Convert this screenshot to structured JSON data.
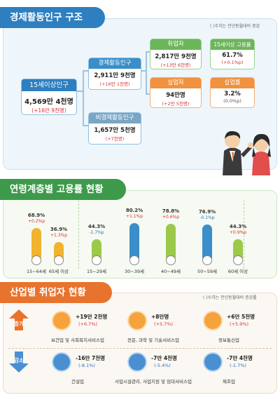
{
  "section1": {
    "title": "경제활동인구 구조",
    "note": "( )수치는 전년동월대비 증감",
    "pop15": {
      "label": "15세이상인구",
      "value": "4,569만 4천명",
      "change": "(+16만 9천명)"
    },
    "econ": {
      "label": "경제활동인구",
      "value": "2,911만 9천명",
      "change": "(+16만 1천명)"
    },
    "nonecon": {
      "label": "비경제활동인구",
      "value": "1,657만 5천명",
      "change": "(+7천명)"
    },
    "employed": {
      "label": "취업자",
      "value": "2,817만 9천명",
      "change": "(+13만 6천명)"
    },
    "unemployed": {
      "label": "실업자",
      "value": "94만명",
      "change": "(+2만 5천명)"
    },
    "emp_rate": {
      "label": "15세이상 고용률",
      "value": "61.7%",
      "change": "(+0.1%p)"
    },
    "unemp_rate": {
      "label": "실업률",
      "value": "3.2%",
      "change": "(0.0%p)"
    }
  },
  "section2": {
    "title": "연령계층별 고용률 현황",
    "bars": [
      {
        "label": "15~64세",
        "value": 68.9,
        "pct": "68.9%",
        "change": "+0.2%p",
        "dir": "up",
        "color": "#f2b32e"
      },
      {
        "label": "65세 이상",
        "value": 36.9,
        "pct": "36.9%",
        "change": "+1.3%p",
        "dir": "up",
        "color": "#f2b32e"
      },
      {
        "label": "15~29세",
        "value": 44.3,
        "pct": "44.3%",
        "change": "-1.7%p",
        "dir": "down",
        "color": "#9cc94a"
      },
      {
        "label": "30~39세",
        "value": 80.2,
        "pct": "80.2%",
        "change": "+1.1%p",
        "dir": "up",
        "color": "#3a8ec9"
      },
      {
        "label": "40~49세",
        "value": 78.8,
        "pct": "78.8%",
        "change": "+0.6%p",
        "dir": "up",
        "color": "#9cc94a"
      },
      {
        "label": "50~59세",
        "value": 76.9,
        "pct": "76.9%",
        "change": "-0.1%p",
        "dir": "down",
        "color": "#3a8ec9"
      },
      {
        "label": "60세 이상",
        "value": 44.3,
        "pct": "44.3%",
        "change": "+0.9%p",
        "dir": "up",
        "color": "#9cc94a"
      }
    ]
  },
  "section3": {
    "title": "산업별 취업자 현황",
    "note": "( )수치는 전년동월대비 증감률",
    "inc_label": "증가",
    "dec_label": "감소",
    "increase": [
      {
        "value": "+19만 2천명",
        "rate": "(+6.7%)",
        "name": "보건업 및 사회복지서비스업",
        "icon": "medical-bag-icon"
      },
      {
        "value": "+8만명",
        "rate": "(+5.7%)",
        "name": "전문, 과학 및 기술서비스업",
        "icon": "science-flask-icon"
      },
      {
        "value": "+6만 5천명",
        "rate": "(+5.9%)",
        "name": "정보통신업",
        "icon": "smartphone-icon"
      }
    ],
    "decrease": [
      {
        "value": "-16만 7천명",
        "rate": "(-8.1%)",
        "name": "건설업",
        "icon": "construction-helmet-icon"
      },
      {
        "value": "-7만 4천명",
        "rate": "(-5.4%)",
        "name": "사업시설관리, 사업지원 및 임대서비스업",
        "icon": "tools-icon"
      },
      {
        "value": "-7만 4천명",
        "rate": "(-1.7%)",
        "name": "제조업",
        "icon": "gear-icon"
      }
    ]
  }
}
